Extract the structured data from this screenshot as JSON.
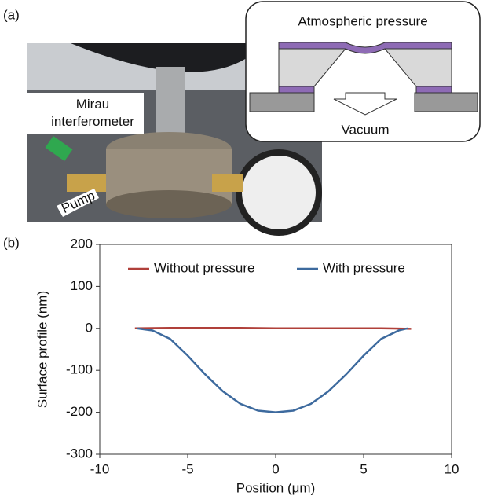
{
  "panel_a": {
    "label": "(a)",
    "photo_callouts": [
      "Mirau interferometer",
      "Pump"
    ],
    "inset": {
      "top_label": "Atmospheric pressure",
      "bottom_label": "Vacuum"
    }
  },
  "panel_b_label": "(b)",
  "chart_data": {
    "type": "line",
    "x_label": "Position (μm)",
    "y_label": "Surface profile (nm)",
    "xlim": [
      -10,
      10
    ],
    "xticks": [
      -10,
      -5,
      0,
      5,
      10
    ],
    "ylim": [
      -300,
      200
    ],
    "yticks": [
      -300,
      -200,
      -100,
      0,
      100,
      200
    ],
    "legend": "top",
    "series": [
      {
        "name": "Without pressure",
        "color": "#b0403a",
        "x": [
          -8,
          -6,
          -4,
          -2,
          0,
          2,
          4,
          6,
          7.7
        ],
        "values": [
          0,
          1,
          1,
          1,
          0,
          0,
          0,
          0,
          -1
        ]
      },
      {
        "name": "With pressure",
        "color": "#3d6a9e",
        "x": [
          -7.9,
          -7,
          -6,
          -5,
          -4,
          -3,
          -2,
          -1,
          0,
          1,
          2,
          3,
          4,
          5,
          6,
          7,
          7.5
        ],
        "values": [
          0,
          -5,
          -25,
          -65,
          -110,
          -150,
          -180,
          -196,
          -200,
          -196,
          -180,
          -150,
          -110,
          -65,
          -25,
          -5,
          0
        ]
      }
    ]
  }
}
